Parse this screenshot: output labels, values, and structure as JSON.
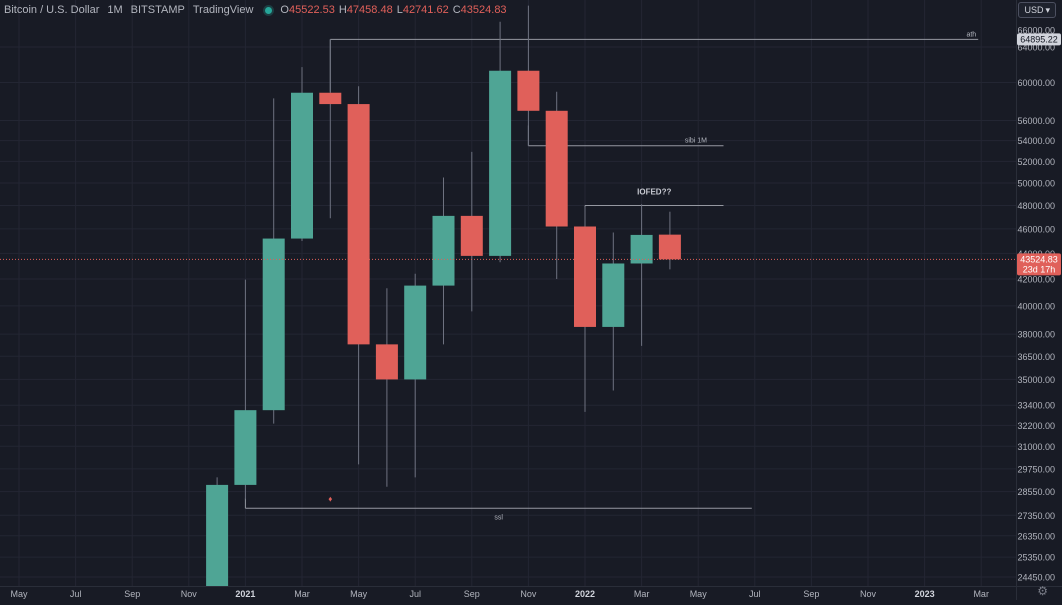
{
  "header": {
    "symbol": "Bitcoin / U.S. Dollar",
    "interval": "1M",
    "exchange": "BITSTAMP",
    "source": "TradingView",
    "ohlc": {
      "o_label": "O",
      "o": "45522.53",
      "h_label": "H",
      "h": "47458.48",
      "l_label": "L",
      "l": "42741.62",
      "c_label": "C",
      "c": "43524.83"
    }
  },
  "currency_button": "USD",
  "colors": {
    "background": "#181b25",
    "grid": "#232633",
    "up": "#4fa595",
    "down": "#e0605a",
    "text": "#b2b5be",
    "line": "#9598a1",
    "price_badge": "#e0605a",
    "ath_badge": "#d1d4dc"
  },
  "chart_data": {
    "type": "candlestick",
    "grid": true,
    "y_scale": "log",
    "ylim": [
      23800,
      66500
    ],
    "price_axis": [
      "64000.00",
      "60000.00",
      "56000.00",
      "54000.00",
      "52000.00",
      "50000.00",
      "48000.00",
      "46000.00",
      "44000.00",
      "42000.00",
      "40000.00",
      "38000.00",
      "36500.00",
      "35000.00",
      "33400.00",
      "32200.00",
      "31000.00",
      "29750.00",
      "28550.00",
      "27350.00",
      "26350.00",
      "25350.00",
      "24450.00"
    ],
    "top_clipped_label": "66000.00",
    "time_axis": [
      "May",
      "Jul",
      "Sep",
      "Nov",
      "2021",
      "Mar",
      "May",
      "Jul",
      "Sep",
      "Nov",
      "2022",
      "Mar",
      "May",
      "Jul",
      "Sep",
      "Nov",
      "2023",
      "Mar"
    ],
    "candles": [
      {
        "month": "Dec 2020",
        "o": 19200,
        "h": 29300,
        "l": 18000,
        "c": 28900
      },
      {
        "month": "Jan 2021",
        "o": 28900,
        "h": 41950,
        "l": 28150,
        "c": 33100
      },
      {
        "month": "Feb 2021",
        "o": 33100,
        "h": 58300,
        "l": 32300,
        "c": 45200
      },
      {
        "month": "Mar 2021",
        "o": 45200,
        "h": 61700,
        "l": 45000,
        "c": 58900
      },
      {
        "month": "Apr 2021",
        "o": 58900,
        "h": 64895.22,
        "l": 46900,
        "c": 57700
      },
      {
        "month": "May 2021",
        "o": 57700,
        "h": 59600,
        "l": 30000,
        "c": 37300
      },
      {
        "month": "Jun 2021",
        "o": 37300,
        "h": 41300,
        "l": 28800,
        "c": 35000
      },
      {
        "month": "Jul 2021",
        "o": 35000,
        "h": 42400,
        "l": 29300,
        "c": 41500
      },
      {
        "month": "Aug 2021",
        "o": 41500,
        "h": 50500,
        "l": 37300,
        "c": 47100
      },
      {
        "month": "Sep 2021",
        "o": 47100,
        "h": 52900,
        "l": 39600,
        "c": 43800
      },
      {
        "month": "Oct 2021",
        "o": 43800,
        "h": 67000,
        "l": 43300,
        "c": 61300
      },
      {
        "month": "Nov 2021",
        "o": 61300,
        "h": 69000,
        "l": 53500,
        "c": 57000
      },
      {
        "month": "Dec 2021",
        "o": 57000,
        "h": 59000,
        "l": 42000,
        "c": 46200
      },
      {
        "month": "Jan 2022",
        "o": 46200,
        "h": 47900,
        "l": 33000,
        "c": 38500
      },
      {
        "month": "Feb 2022",
        "o": 38500,
        "h": 45700,
        "l": 34300,
        "c": 43200
      },
      {
        "month": "Mar 2022",
        "o": 43200,
        "h": 48100,
        "l": 37200,
        "c": 45500
      },
      {
        "month": "Apr 2022",
        "o": 45522.53,
        "h": 47458.48,
        "l": 42741.62,
        "c": 43524.83
      }
    ],
    "annotations": [
      {
        "kind": "hline",
        "text": "ath",
        "price": 64895.22,
        "from": "Apr 2021",
        "to": "Mar 2023"
      },
      {
        "kind": "hline",
        "text": "sibi 1M",
        "price": 53500,
        "from": "Nov 2021",
        "to": "Jun 2022"
      },
      {
        "kind": "hline",
        "text": "IOFED??",
        "price": 48000,
        "from": "Jan 2022",
        "to": "Jun 2022"
      },
      {
        "kind": "hline",
        "text": "ssl",
        "price": 27700,
        "from": "Jan 2021",
        "to": "Jul 2022"
      }
    ],
    "ath_label": "64895.22",
    "current_price": {
      "value": "43524.83",
      "countdown": "23d 17h"
    }
  }
}
